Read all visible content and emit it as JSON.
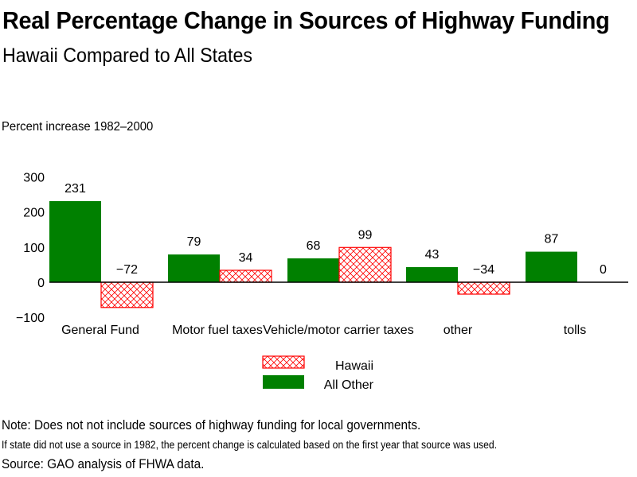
{
  "chart_data": {
    "type": "bar",
    "title": "Real Percentage Change in Sources of Highway Funding",
    "subtitle": "Hawaii Compared to All States",
    "ylabel": "Percent increase 1982–2000",
    "xlabel": "",
    "ylim": [
      -100,
      300
    ],
    "yticks": [
      300,
      200,
      100,
      0,
      -100
    ],
    "ytick_labels": [
      "300",
      "200",
      "100",
      "0",
      "−100"
    ],
    "grid": false,
    "legend_position": "bottom-center",
    "categories": [
      "General Fund",
      "Motor fuel taxes",
      "Vehicle/motor carrier taxes",
      "other",
      "tolls"
    ],
    "series": [
      {
        "name": "All Other",
        "color": "#008000",
        "pattern": "solid",
        "values": [
          231,
          79,
          68,
          43,
          87
        ],
        "labels": [
          "231",
          "79",
          "68",
          "43",
          "87"
        ]
      },
      {
        "name": "Hawaii",
        "color": "#ff0000",
        "pattern": "crosshatch",
        "values": [
          -72,
          34,
          99,
          -34,
          0
        ],
        "labels": [
          "−72",
          "34",
          "99",
          "−34",
          "0"
        ]
      }
    ],
    "legend": [
      "Hawaii",
      "All Other"
    ]
  },
  "notes": {
    "note": "Note: Does not not include sources of highway funding for local governments.",
    "detail": "If state did not use a source in 1982, the percent change is calculated based on the first year that source was used.",
    "source": "Source: GAO analysis of FHWA data."
  }
}
